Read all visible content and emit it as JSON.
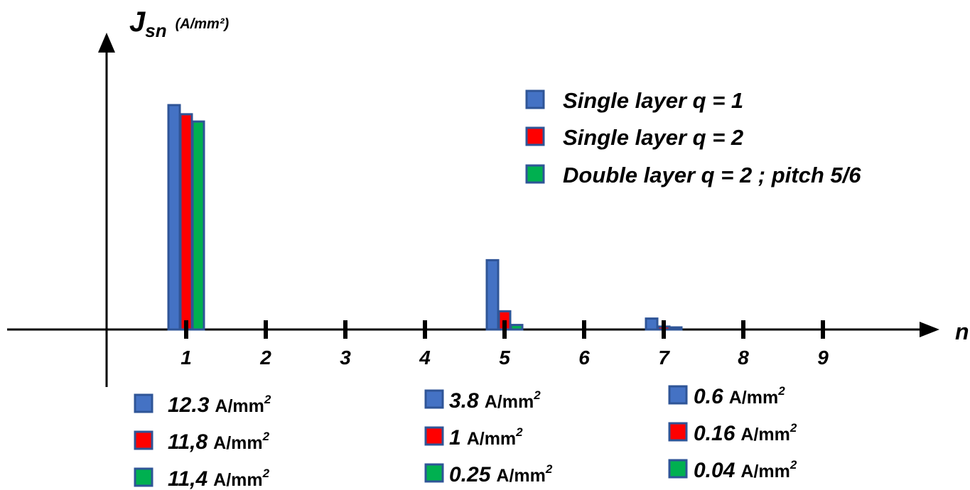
{
  "chart_data": {
    "type": "bar",
    "ylabel": "J",
    "ylabel_subscript": "sn",
    "ylabel_unit": "(A/mm²)",
    "xlabel": "n",
    "x_ticks": [
      "1",
      "2",
      "3",
      "4",
      "5",
      "6",
      "7",
      "8",
      "9"
    ],
    "grid": false,
    "legend_position": "top-right",
    "colors": {
      "series1": "#4472C4",
      "series2": "#FF0000",
      "series3": "#00B050",
      "border": "#2F5597"
    },
    "series": [
      {
        "name": "Single layer q = 1",
        "x": [
          1,
          5,
          7
        ],
        "values": [
          12.3,
          3.8,
          0.6
        ]
      },
      {
        "name": "Single layer q = 2",
        "x": [
          1,
          5,
          7
        ],
        "values": [
          11.8,
          1,
          0.16
        ]
      },
      {
        "name": "Double layer q = 2 ; pitch 5/6",
        "x": [
          1,
          5,
          7
        ],
        "values": [
          11.4,
          0.25,
          0.04
        ]
      }
    ],
    "annotations": [
      {
        "harmonic": 1,
        "lines": [
          {
            "value": "12.3",
            "unit": "A/mm",
            "sup": "2"
          },
          {
            "value": "11,8",
            "unit": "A/mm",
            "sup": "2"
          },
          {
            "value": "11,4",
            "unit": "A/mm",
            "sup": "2"
          }
        ]
      },
      {
        "harmonic": 5,
        "lines": [
          {
            "value": "3.8",
            "unit": "A/mm",
            "sup": "2"
          },
          {
            "value": "1",
            "unit": "A/mm",
            "sup": "2"
          },
          {
            "value": "0.25",
            "unit": "A/mm",
            "sup": "2"
          }
        ]
      },
      {
        "harmonic": 7,
        "lines": [
          {
            "value": "0.6",
            "unit": "A/mm",
            "sup": "2"
          },
          {
            "value": "0.16",
            "unit": "A/mm",
            "sup": "2"
          },
          {
            "value": "0.04",
            "unit": "A/mm",
            "sup": "2"
          }
        ]
      }
    ]
  }
}
